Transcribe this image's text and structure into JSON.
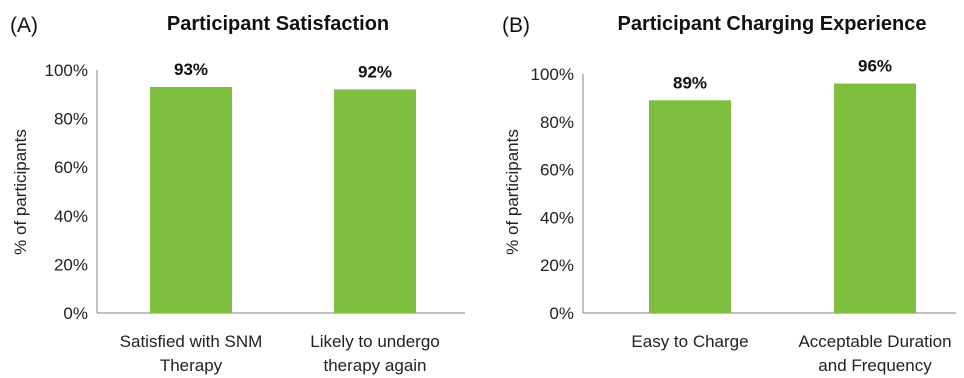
{
  "chart_data": [
    {
      "type": "bar",
      "panel_label": "(A)",
      "title": "Participant Satisfaction",
      "ylabel": "% of participants",
      "xlabel": "",
      "ylim": [
        0,
        100
      ],
      "yticks": [
        "0%",
        "20%",
        "40%",
        "60%",
        "80%",
        "100%"
      ],
      "categories": [
        [
          "Satisfied with SNM",
          "Therapy"
        ],
        [
          "Likely to undergo",
          "therapy again"
        ]
      ],
      "values": [
        93,
        92
      ],
      "data_labels": [
        "93%",
        "92%"
      ],
      "bar_color": "#7fbf3f",
      "grid": false
    },
    {
      "type": "bar",
      "panel_label": "(B)",
      "title": "Participant Charging Experience",
      "ylabel": "% of participants",
      "xlabel": "",
      "ylim": [
        0,
        100
      ],
      "yticks": [
        "0%",
        "20%",
        "40%",
        "60%",
        "80%",
        "100%"
      ],
      "categories": [
        [
          "Easy to Charge"
        ],
        [
          "Acceptable Duration",
          "and Frequency"
        ]
      ],
      "values": [
        89,
        96
      ],
      "data_labels": [
        "89%",
        "96%"
      ],
      "bar_color": "#7fbf3f",
      "grid": false
    }
  ]
}
